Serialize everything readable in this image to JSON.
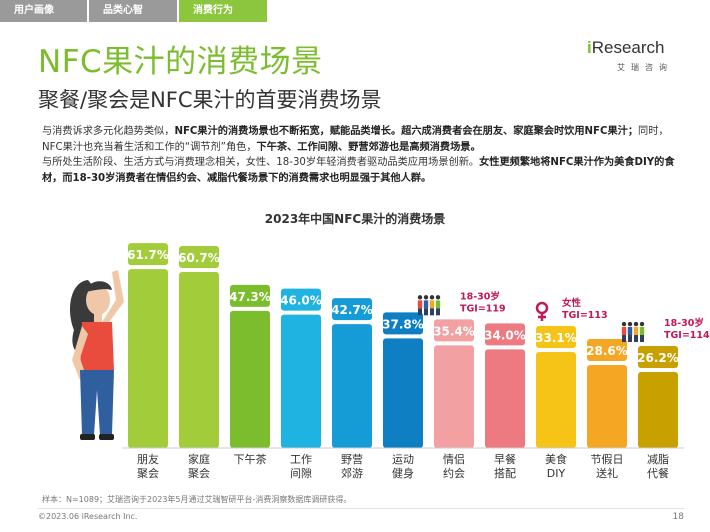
{
  "tabs": [
    "用户画像",
    "品类心智",
    "消费行为"
  ],
  "title": "NFC果汁的消费场景",
  "subtitle": "聚餐/聚会是NFC果汁的首要消费场景",
  "logo": {
    "brand_i": "i",
    "brand_rest": "Research",
    "sub": "艾瑞咨询"
  },
  "paragraph": {
    "p1": "与消费诉求多元化趋势类似，",
    "p1_bold": "NFC果汁的消费场景也不断拓宽，赋能品类增长。超六成消费者会在朋友、家庭聚会时饮用NFC果汁；",
    "p2": "同时，NFC果汁也充当着生活和工作的“调节剂”角色，",
    "p2_bold": "下午茶、工作间隙、野营郊游也是高频消费场景。",
    "p3": "与所处生活阶段、生活方式与消费理念相关，女性、18-30岁年轻消费者驱动品类应用场景创新。",
    "p3_bold": "女性更频繁地将NFC果汁作为美食DIY的食材，而18-30岁消费者在情侣约会、减脂代餐场景下的消费需求也明显强于其他人群。"
  },
  "chart_title": "2023年中国NFC果汁的消费场景",
  "chart_data": {
    "type": "bar",
    "title": "2023年中国NFC果汁的消费场景",
    "categories": [
      "朋友\n聚会",
      "家庭\n聚会",
      "下午茶",
      "工作\n间隙",
      "野营\n郊游",
      "运动\n健身",
      "情侣\n约会",
      "早餐\n搭配",
      "美食\nDIY",
      "节假日\n送礼",
      "减脂\n代餐"
    ],
    "values": [
      61.7,
      60.7,
      47.3,
      46.0,
      42.7,
      37.8,
      35.4,
      34.0,
      33.1,
      28.6,
      26.2
    ],
    "value_labels": [
      "61.7%",
      "60.7%",
      "47.3%",
      "46.0%",
      "42.7%",
      "37.8%",
      "35.4%",
      "34.0%",
      "33.1%",
      "28.6%",
      "26.2%"
    ],
    "colors": [
      "#a3cc3a",
      "#a3cc3a",
      "#7cbd2e",
      "#1eb3e0",
      "#159cd6",
      "#0f7fc3",
      "#f2a0a2",
      "#ec7a80",
      "#f5c416",
      "#f5a623",
      "#c8a000"
    ],
    "annotations": [
      {
        "bar_index": 6,
        "line1": "18-30岁",
        "line2": "TGI=119"
      },
      {
        "bar_index": 8,
        "line1": "女性",
        "line2": "TGI=113"
      },
      {
        "bar_index": 10,
        "line1": "18-30岁",
        "line2": "TGI=114"
      }
    ],
    "ylim": [
      0,
      70
    ]
  },
  "colors": {
    "accent_green": "#7cbd2e",
    "annotation": "#c0185a"
  },
  "footnote": "样本：N=1089；艾瑞咨询于2023年5月通过艾瑞智研平台-消费洞察数据库调研获得。",
  "copyright": "©2023.06 iResearch Inc.",
  "page_number": "18"
}
